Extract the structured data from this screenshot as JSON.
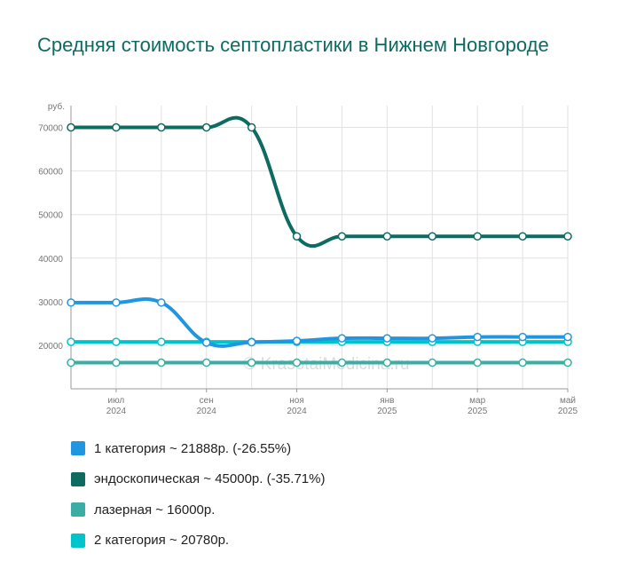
{
  "title": "Средняя стоимость септопластики в Нижнем Новгороде",
  "watermark": "© KrasotaiMedicina.ru",
  "chart_data": {
    "type": "line",
    "y_unit": "руб.",
    "ylim": [
      10000,
      75000
    ],
    "yticks": [
      20000,
      30000,
      40000,
      50000,
      60000,
      70000
    ],
    "x": [
      "2024-06",
      "2024-07",
      "2024-08",
      "2024-09",
      "2024-10",
      "2024-11",
      "2024-12",
      "2025-01",
      "2025-02",
      "2025-03",
      "2025-04",
      "2025-05"
    ],
    "x_ticks": [
      {
        "x": "2024-07",
        "month": "июл",
        "year": "2024"
      },
      {
        "x": "2024-09",
        "month": "сен",
        "year": "2024"
      },
      {
        "x": "2024-11",
        "month": "ноя",
        "year": "2024"
      },
      {
        "x": "2025-01",
        "month": "янв",
        "year": "2025"
      },
      {
        "x": "2025-03",
        "month": "мар",
        "year": "2025"
      },
      {
        "x": "2025-05",
        "month": "май",
        "year": "2025"
      }
    ],
    "grid": true,
    "series": [
      {
        "name": "1 категория",
        "color": "#2196e0",
        "values": [
          29800,
          29800,
          29800,
          20600,
          20700,
          21000,
          21600,
          21600,
          21600,
          21900,
          21900,
          21900
        ],
        "legend": "1 категория ~ 21888р. (-26.55%)"
      },
      {
        "name": "эндоскопическая",
        "color": "#0d6b62",
        "values": [
          70000,
          70000,
          70000,
          70000,
          70000,
          45000,
          45000,
          45000,
          45000,
          45000,
          45000,
          45000
        ],
        "legend": "эндоскопическая ~ 45000р. (-35.71%)"
      },
      {
        "name": "лазерная",
        "color": "#3aada5",
        "values": [
          16000,
          16000,
          16000,
          16000,
          16000,
          16000,
          16000,
          16000,
          16000,
          16000,
          16000,
          16000
        ],
        "legend": "лазерная ~ 16000р."
      },
      {
        "name": "2 категория",
        "color": "#00c4cc",
        "values": [
          20780,
          20780,
          20780,
          20780,
          20780,
          20780,
          20780,
          20780,
          20780,
          20780,
          20780,
          20780
        ],
        "legend": "2 категория ~ 20780р."
      }
    ]
  }
}
